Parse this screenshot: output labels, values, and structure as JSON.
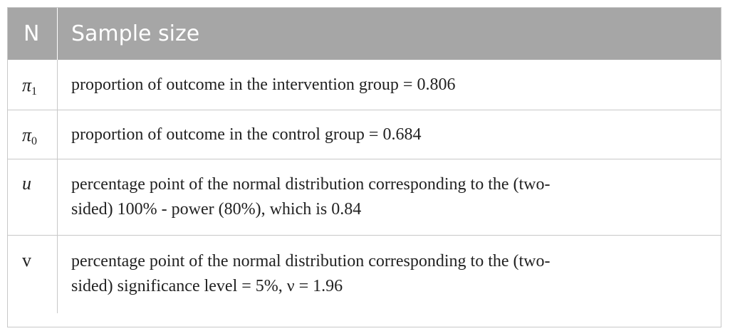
{
  "header": {
    "symbol": "N",
    "description": "Sample size"
  },
  "rows": [
    {
      "symbol": "π",
      "subscript": "1",
      "lines": [
        "proportion of outcome in the intervention group = 0.806"
      ]
    },
    {
      "symbol": "π",
      "subscript": "0",
      "lines": [
        "proportion of outcome in the control group = 0.684"
      ]
    },
    {
      "symbol": "u",
      "subscript": "",
      "lines": [
        "percentage point of the normal distribution corresponding to the (two-",
        "sided) 100% - power (80%), which is 0.84"
      ]
    },
    {
      "symbol": "v",
      "subscript": "",
      "lines": [
        "percentage point of the normal distribution corresponding to the (two-",
        "sided) significance level = 5%, ν = 1.96"
      ]
    }
  ]
}
